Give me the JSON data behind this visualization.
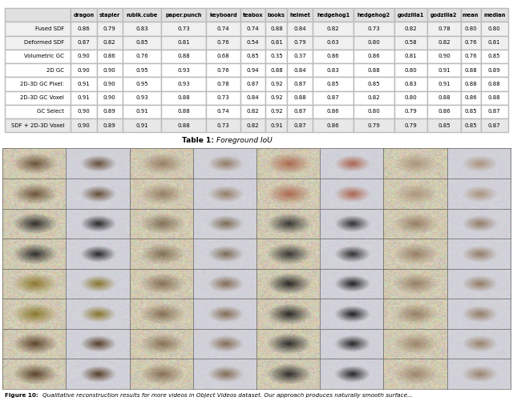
{
  "table_title_bold": "Table 1:",
  "table_title_italic": "Foreground IoU",
  "col_headers": [
    "",
    "dragon",
    "stapler",
    "rubik.cube",
    "paper.punch",
    "keyboard",
    "teabox",
    "books",
    "helmet",
    "hedgehog1",
    "hedgehog2",
    "godzilla1",
    "godzilla2",
    "mean",
    "median"
  ],
  "row_groups": [
    {
      "rows": [
        {
          "label": "Fused SDF",
          "values": [
            0.86,
            0.79,
            0.83,
            0.73,
            0.74,
            0.74,
            0.88,
            0.84,
            0.82,
            0.73,
            0.82,
            0.78,
            0.8,
            0.8
          ]
        },
        {
          "label": "Deformed SDF",
          "values": [
            0.87,
            0.82,
            0.85,
            0.81,
            0.76,
            0.54,
            0.81,
            0.79,
            0.63,
            0.8,
            0.58,
            0.82,
            0.76,
            0.81
          ]
        }
      ]
    },
    {
      "rows": [
        {
          "label": "Volumetric GC",
          "values": [
            0.9,
            0.86,
            0.76,
            0.88,
            0.68,
            0.85,
            0.35,
            0.37,
            0.86,
            0.86,
            0.81,
            0.9,
            0.76,
            0.85
          ]
        },
        {
          "label": "2D GC",
          "values": [
            0.9,
            0.9,
            0.95,
            0.93,
            0.76,
            0.94,
            0.88,
            0.84,
            0.83,
            0.88,
            0.8,
            0.91,
            0.88,
            0.89
          ]
        },
        {
          "label": "2D-3D GC Pixel:",
          "values": [
            0.91,
            0.9,
            0.95,
            0.93,
            0.78,
            0.87,
            0.92,
            0.87,
            0.85,
            0.85,
            0.83,
            0.91,
            0.88,
            0.88
          ]
        },
        {
          "label": "2D-3D GC Voxel",
          "values": [
            0.91,
            0.9,
            0.93,
            0.88,
            0.73,
            0.84,
            0.92,
            0.88,
            0.87,
            0.82,
            0.8,
            0.88,
            0.86,
            0.88
          ]
        },
        {
          "label": "GC Select",
          "values": [
            0.9,
            0.89,
            0.91,
            0.88,
            0.74,
            0.82,
            0.92,
            0.87,
            0.86,
            0.8,
            0.79,
            0.86,
            0.85,
            0.87
          ]
        }
      ]
    },
    {
      "rows": [
        {
          "label": "SDF + 2D-3D Voxel",
          "values": [
            0.9,
            0.89,
            0.91,
            0.88,
            0.73,
            0.82,
            0.91,
            0.87,
            0.86,
            0.79,
            0.79,
            0.85,
            0.85,
            0.87
          ]
        }
      ]
    }
  ],
  "caption_bold": "Figure 10:",
  "caption_italic": "Qualitative reconstruction results for more videos in Object Videos dataset. Our approach produces naturally smooth surface...",
  "bg_color": "#ffffff",
  "header_bg": "#e0e0e0",
  "group0_bg": "#f0f0f0",
  "group1_bg": "#ffffff",
  "group2_bg": "#e8e8e8",
  "edge_color": "#bbbbbb",
  "num_image_rows": 4,
  "num_image_cols": 4,
  "row_colors": [
    [
      [
        0.35,
        0.25,
        0.15
      ],
      [
        0.55,
        0.45,
        0.35
      ],
      [
        0.65,
        0.35,
        0.25
      ],
      [
        0.65,
        0.55,
        0.45
      ]
    ],
    [
      [
        0.08,
        0.08,
        0.08
      ],
      [
        0.45,
        0.38,
        0.28
      ],
      [
        0.12,
        0.12,
        0.12
      ],
      [
        0.55,
        0.45,
        0.35
      ]
    ],
    [
      [
        0.5,
        0.42,
        0.1
      ],
      [
        0.48,
        0.38,
        0.28
      ],
      [
        0.05,
        0.05,
        0.05
      ],
      [
        0.55,
        0.45,
        0.35
      ]
    ],
    [
      [
        0.28,
        0.18,
        0.08
      ],
      [
        0.48,
        0.38,
        0.28
      ],
      [
        0.08,
        0.08,
        0.08
      ],
      [
        0.58,
        0.48,
        0.38
      ]
    ]
  ]
}
